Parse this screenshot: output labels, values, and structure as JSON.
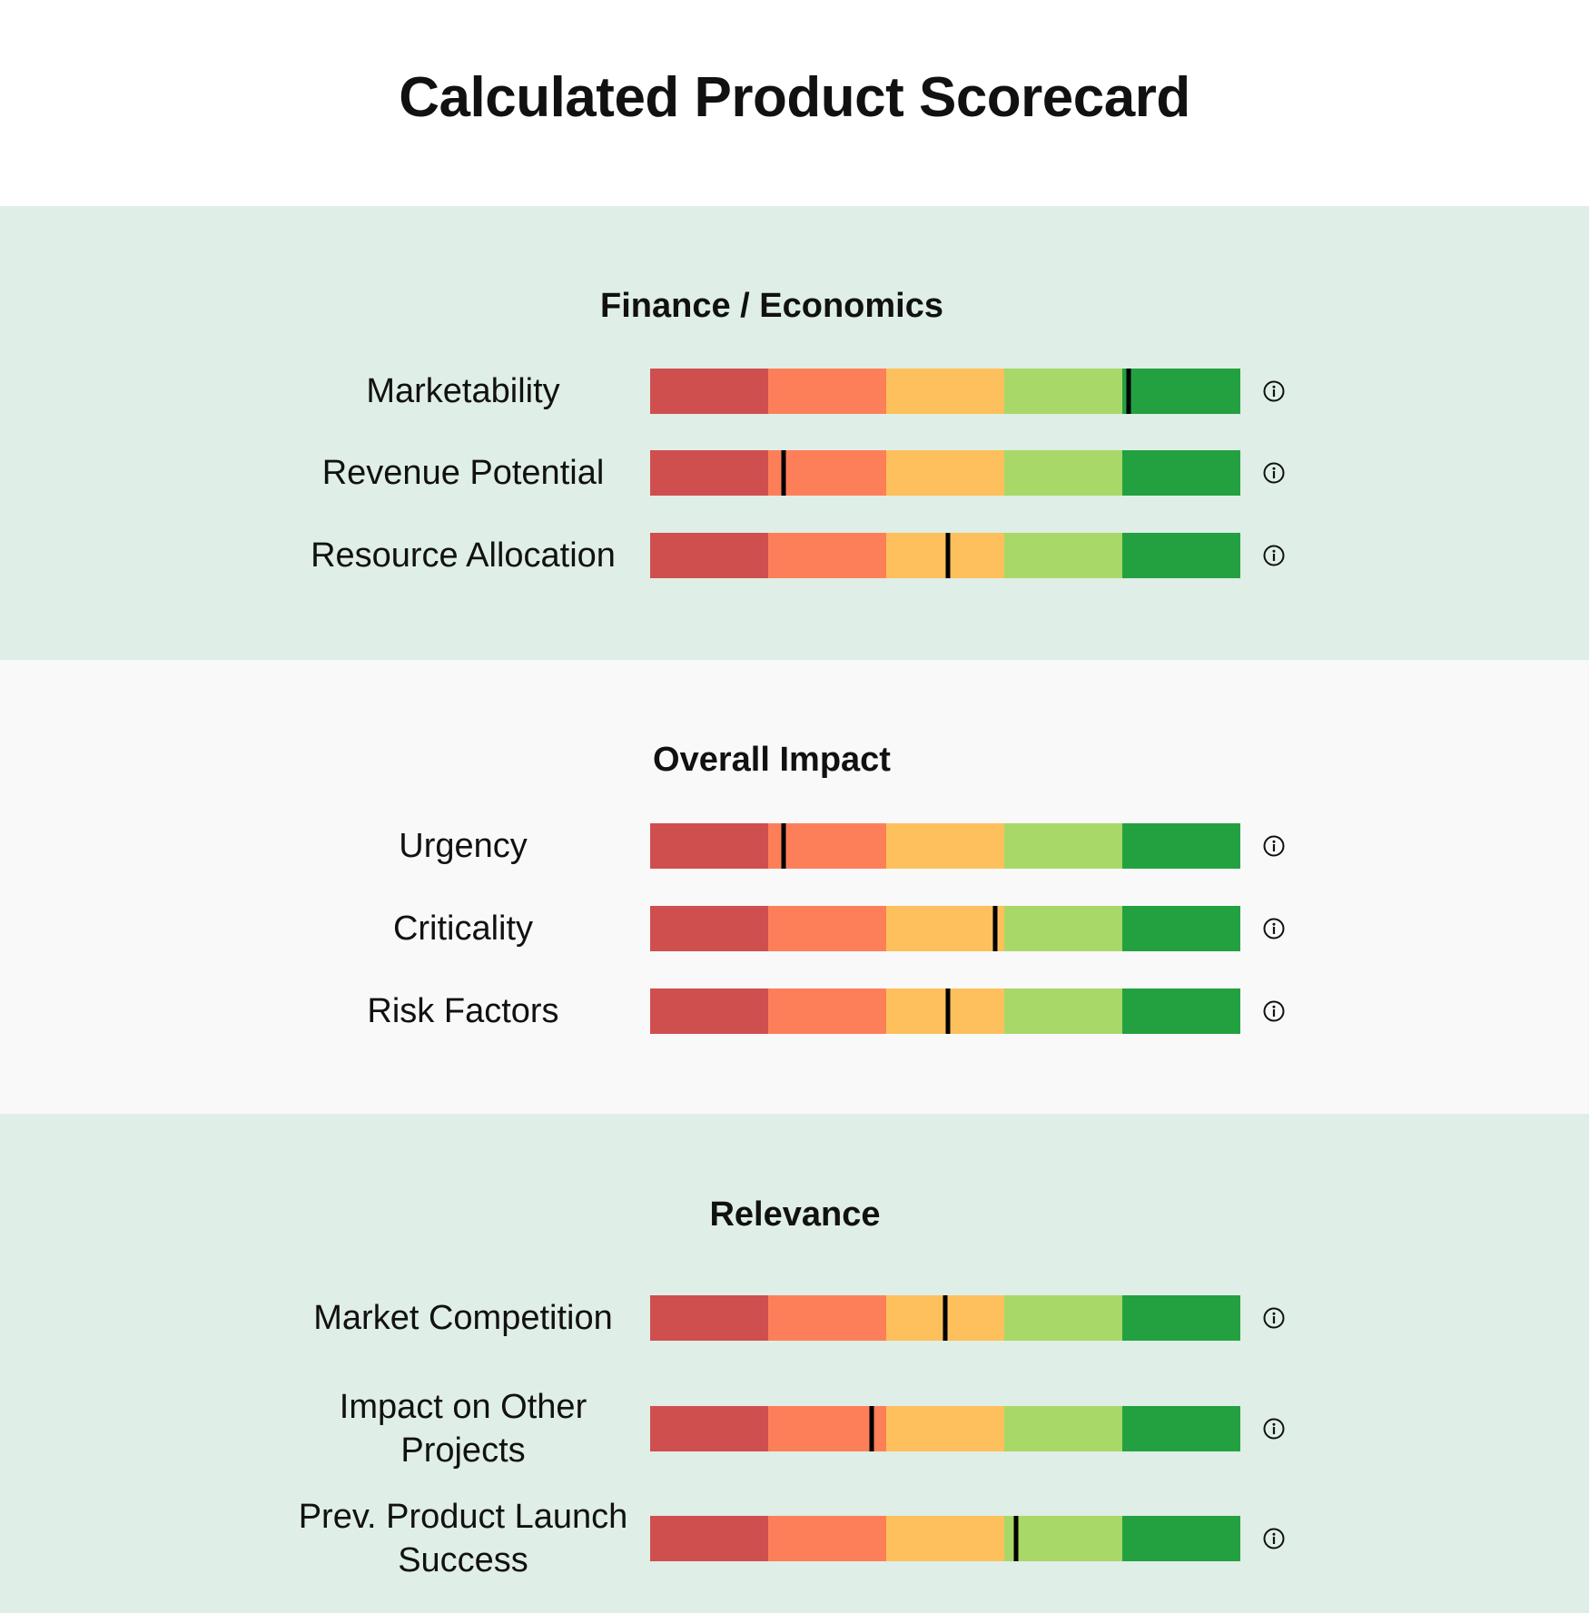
{
  "title": "Calculated Product Scorecard",
  "colors": {
    "segments": [
      "#cf4f4f",
      "#fd7f5a",
      "#fdc05c",
      "#a8d868",
      "#23a141"
    ],
    "marker": "#000000",
    "section_backgrounds": [
      "#dfeee6",
      "#f9f9f9",
      "#dfeee6"
    ]
  },
  "chart_data": {
    "type": "bar",
    "scale": [
      0,
      5
    ],
    "segments_per_bar": 5,
    "sections": [
      {
        "title": "Finance / Economics",
        "metrics": [
          {
            "label": "Marketability",
            "value": 4.05
          },
          {
            "label": "Revenue Potential",
            "value": 1.13
          },
          {
            "label": "Resource Allocation",
            "value": 2.52
          }
        ]
      },
      {
        "title": "Overall Impact",
        "metrics": [
          {
            "label": "Urgency",
            "value": 1.13
          },
          {
            "label": "Criticality",
            "value": 2.92
          },
          {
            "label": "Risk Factors",
            "value": 2.52
          }
        ]
      },
      {
        "title": "Relevance",
        "metrics": [
          {
            "label": "Market Competition",
            "value": 2.5
          },
          {
            "label": "Impact on Other Projects",
            "value": 1.88
          },
          {
            "label": "Prev. Product Launch Success",
            "value": 3.1
          }
        ]
      }
    ]
  },
  "icons": {
    "info": "info-circle-icon"
  }
}
